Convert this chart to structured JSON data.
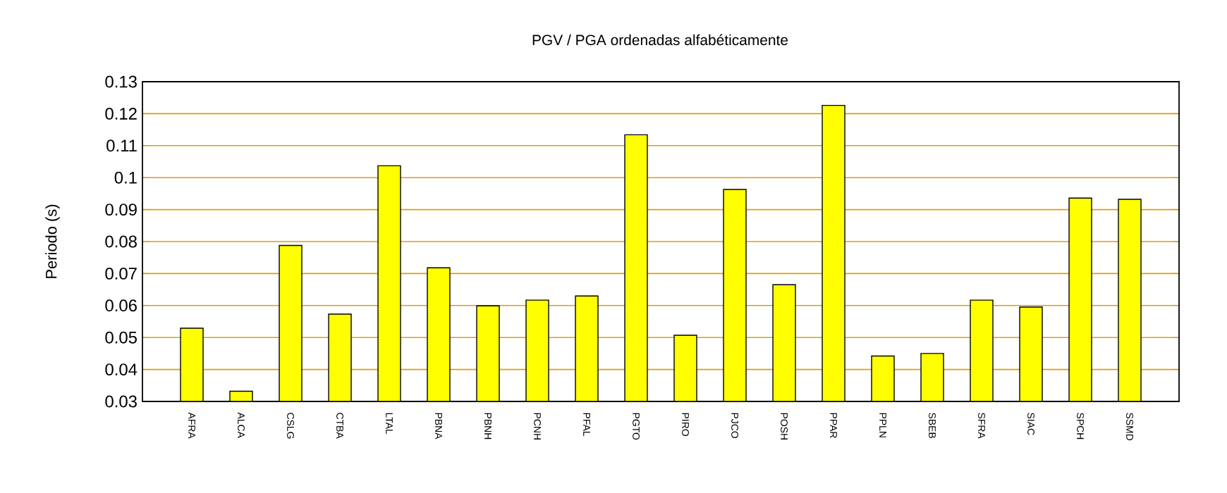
{
  "chart_data": {
    "type": "bar",
    "title": "PGV / PGA ordenadas alfabéticamente",
    "ylabel": "Periodo (s)",
    "categories": [
      "AFRA",
      "ALCA",
      "CSLG",
      "CTBA",
      "LTAL",
      "PBNA",
      "PBNH",
      "PCNH",
      "PFAL",
      "PGTO",
      "PIRO",
      "PJCO",
      "POSH",
      "PPAR",
      "PPLN",
      "SBEB",
      "SFRA",
      "SIAC",
      "SPCH",
      "SSMD"
    ],
    "values": [
      0.0529,
      0.0332,
      0.0788,
      0.0573,
      0.1037,
      0.0718,
      0.0599,
      0.0617,
      0.063,
      0.1134,
      0.0507,
      0.0963,
      0.0665,
      0.1226,
      0.0442,
      0.045,
      0.0617,
      0.0595,
      0.0936,
      0.0932
    ],
    "color": "#ffff00",
    "ylim": [
      0.03,
      0.13
    ],
    "yticks": [
      0.03,
      0.04,
      0.05,
      0.06,
      0.07,
      0.08,
      0.09,
      0.1,
      0.11,
      0.12,
      0.13
    ],
    "grid": "y"
  }
}
